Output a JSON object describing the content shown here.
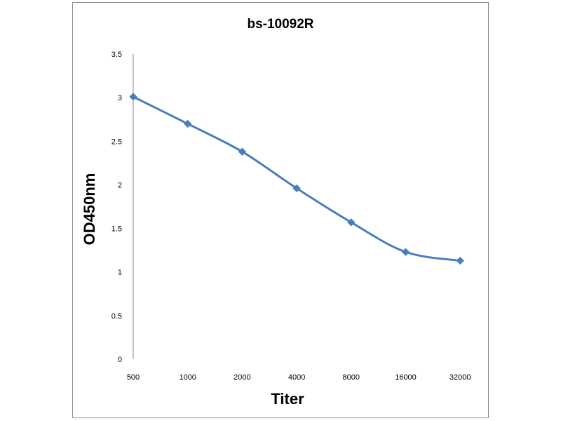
{
  "chart_data": {
    "type": "line",
    "title": "bs-10092R",
    "xlabel": "Titer",
    "ylabel": "OD450nm",
    "categories": [
      "500",
      "1000",
      "2000",
      "4000",
      "8000",
      "16000",
      "32000"
    ],
    "series": [
      {
        "name": "bs-10092R",
        "values": [
          3.01,
          2.7,
          2.38,
          1.96,
          1.57,
          1.23,
          1.13
        ]
      }
    ],
    "ylim": [
      0,
      3.5
    ],
    "yticks": [
      "0",
      "0.5",
      "1",
      "1.5",
      "2",
      "2.5",
      "3",
      "3.5"
    ],
    "grid": false,
    "legend": "none",
    "line_color": "#4a7ebb"
  }
}
